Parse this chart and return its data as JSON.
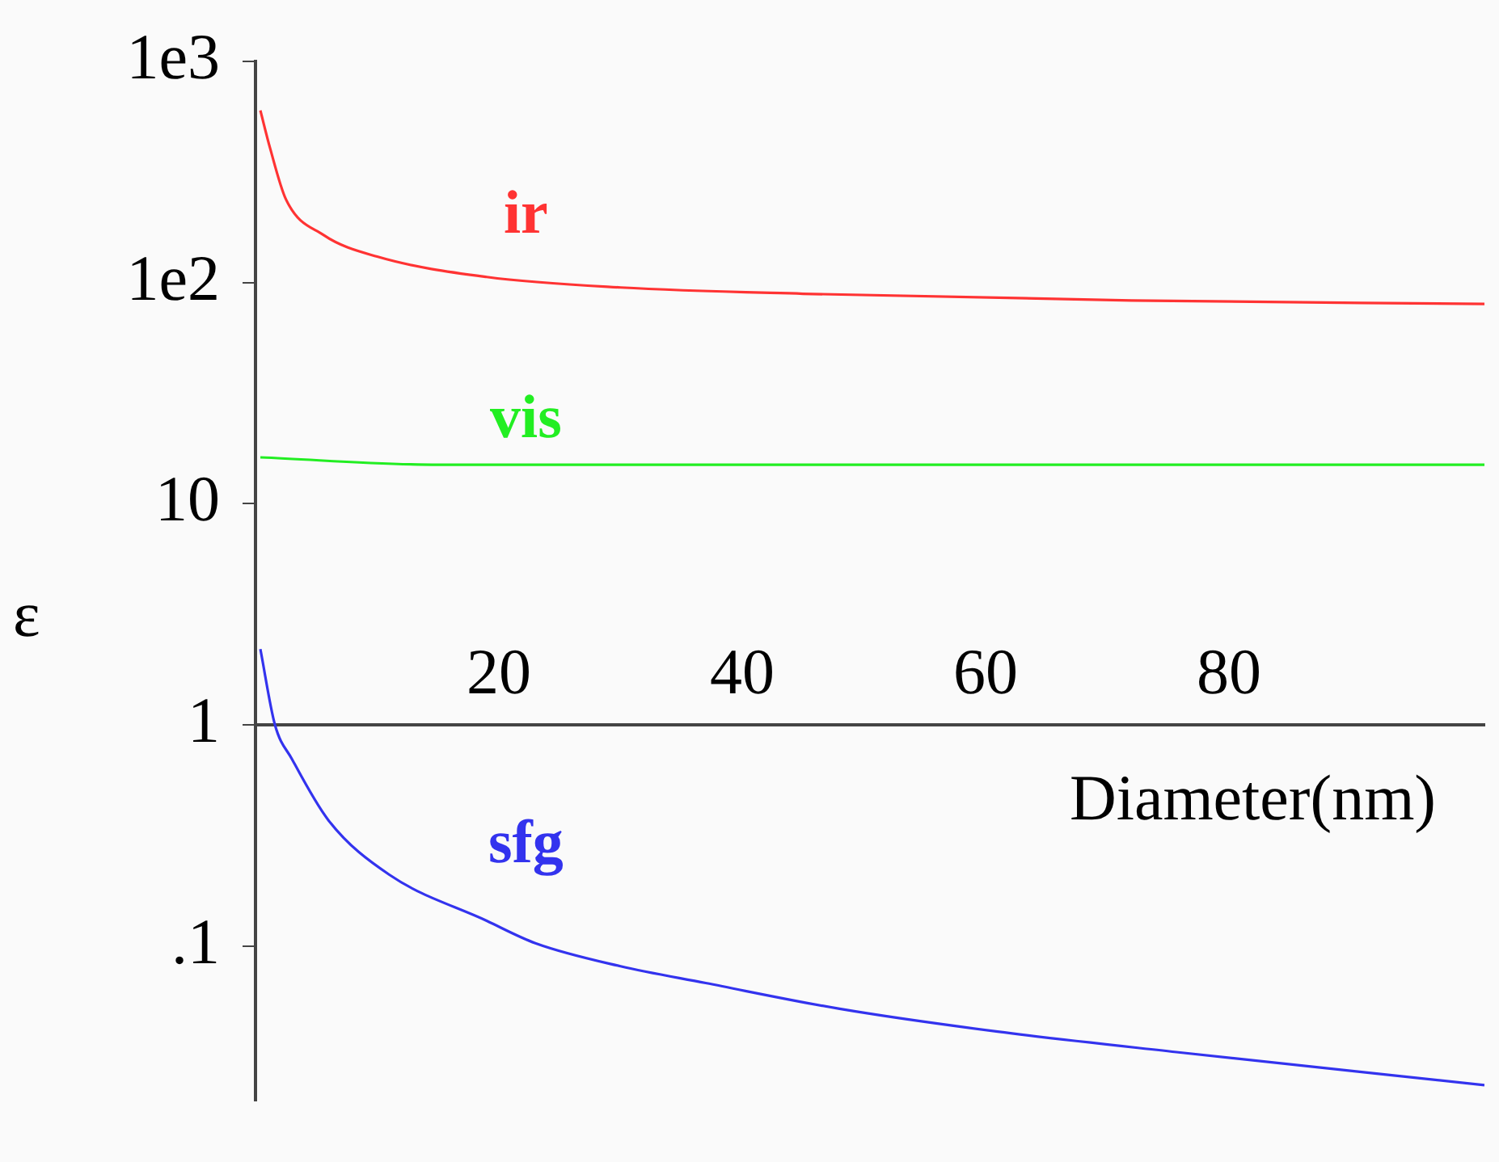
{
  "chart_data": {
    "type": "line",
    "xlabel": "Diameter(nm)",
    "ylabel": "ε",
    "log": "y",
    "grid": false,
    "legend": false,
    "marker": "none",
    "line_style": "solid",
    "xlim": [
      0,
      101
    ],
    "ylim": [
      0.02,
      1000
    ],
    "xticks": [
      {
        "value": 20,
        "label": "20"
      },
      {
        "value": 40,
        "label": "40"
      },
      {
        "value": 60,
        "label": "60"
      },
      {
        "value": 80,
        "label": "80"
      }
    ],
    "yticks": [
      {
        "value": 0.1,
        "label": ".1"
      },
      {
        "value": 1,
        "label": "1"
      },
      {
        "value": 10,
        "label": "10"
      },
      {
        "value": 100,
        "label": "1e2"
      },
      {
        "value": 1000,
        "label": "1e3"
      }
    ],
    "series": [
      {
        "name": "ir",
        "color": "#ff3333",
        "x": [
          0.4,
          1.2,
          2.5,
          5.6,
          10,
          19,
          30,
          45,
          72,
          101
        ],
        "values": [
          600,
          405,
          238,
          164,
          131,
          106,
          95,
          89,
          83,
          80
        ]
      },
      {
        "name": "vis",
        "color": "#22ee22",
        "x": [
          0.4,
          15,
          45,
          101
        ],
        "values": [
          16.2,
          15,
          15,
          15
        ]
      },
      {
        "name": "sfg",
        "color": "#3333ee",
        "x": [
          0.4,
          1.6,
          3,
          6,
          11,
          19,
          23,
          30,
          37,
          48,
          61,
          76,
          101
        ],
        "values": [
          2.2,
          1.0,
          0.7,
          0.37,
          0.21,
          0.13,
          0.103,
          0.081,
          0.068,
          0.052,
          0.041,
          0.033,
          0.0235
        ]
      }
    ]
  }
}
